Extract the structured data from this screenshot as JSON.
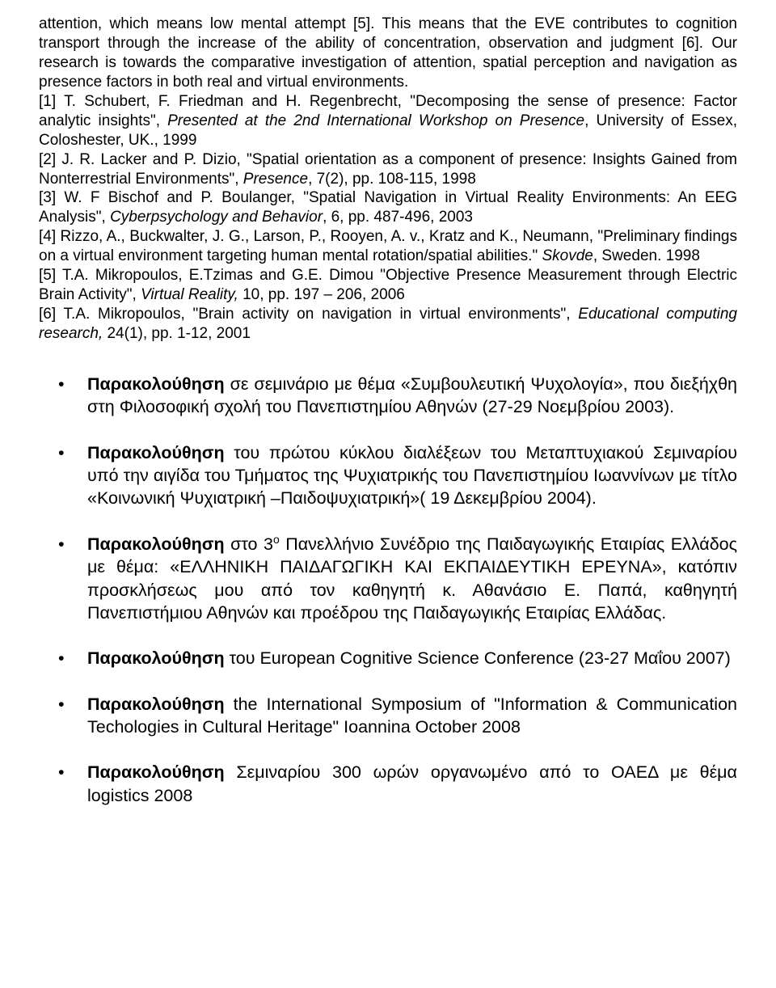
{
  "intro": {
    "p1_a": "attention, which means low mental attempt [5]. This means that the EVE contributes to cognition transport through the increase of the ability of concentration, observation and judgment [6]. Our research is towards the comparative investigation of attention, spatial perception and navigation as presence factors in both real and virtual environments."
  },
  "refs": {
    "r1_a": "[1] T. Schubert, F. Friedman and H. Regenbrecht, \"Decomposing the sense of presence: Factor analytic insights\", ",
    "r1_i": "Presented at the 2nd International Workshop on Presence",
    "r1_b": ", University of Essex, Coloshester, UK., 1999",
    "r2_a": "[2] J. R. Lacker and  P. Dizio, \"Spatial orientation as a component of presence: Insights Gained from Nonterrestrial Environments\", ",
    "r2_i": "Presence",
    "r2_b": ", 7(2), pp. 108-115, 1998",
    "r3_a": "[3] W. F Bischof and P. Boulanger, \"Spatial Navigation in Virtual Reality Environments: An EEG Analysis\", ",
    "r3_i": "Cyberpsychology and Behavior",
    "r3_b": ", 6, pp. 487-496, 2003",
    "r4_a": "[4] Rizzo, A., Buckwalter, J. G., Larson, P., Rooyen, A. v., Kratz and K., Neumann, \"Preliminary findings on a virtual environment targeting human mental rotation/spatial abilities.\" ",
    "r4_i": "Skovde",
    "r4_b": ", Sweden. 1998",
    "r5_a": "[5] T.A. Mikropoulos, E.Tzimas and G.E. Dimou \"Objective Presence Measurement through Electric Brain Activity\", ",
    "r5_i": "Virtual Reality,",
    "r5_b": " 10, pp. 197 – 206, 2006",
    "r6_a": "[6] T.A. Mikropoulos, \"Brain activity on navigation in virtual environments\", ",
    "r6_i": "Educational computing research,",
    "r6_b": " 24(1), pp. 1-12, 2001"
  },
  "bullets": {
    "b1_bold": "Παρακολούθηση",
    "b1_rest": " σε σεμινάριο με θέμα «Συμβουλευτική Ψυχολογία», που διεξήχθη στη Φιλοσοφική σχολή του Πανεπιστημίου Αθηνών (27-29 Νοεμβρίου 2003).",
    "b2_bold": "Παρακολούθηση",
    "b2_rest": " του πρώτου κύκλου διαλέξεων του Μεταπτυχιακού Σεμιναρίου υπό την αιγίδα του Τμήματος της Ψυχιατρικής του Πανεπιστημίου Ιωαννίνων με τίτλο «Κοινωνική Ψυχιατρική –Παιδοψυχιατρική»( 19 Δεκεμβρίου 2004).",
    "b3_bold": "Παρακολούθηση",
    "b3_mid1": " στο 3",
    "b3_sup": "ο",
    "b3_rest": "  Πανελλήνιο Συνέδριο της Παιδαγωγικής Εταιρίας Ελλάδος με θέμα: «ΕΛΛΗΝΙΚΗ ΠΑΙΔΑΓΩΓΙΚΗ ΚΑΙ ΕΚΠΑΙΔΕΥΤΙΚΗ ΕΡΕΥΝΑ», κατόπιν προσκλήσεως μου από τον καθηγητή κ. Αθανάσιο Ε. Παπά, καθηγητή Πανεπιστήμιου Αθηνών και προέδρου της Παιδαγωγικής Εταιρίας Ελλάδας.",
    "b4_bold": "Παρακολούθηση",
    "b4_rest": " του European Cognitive Science Conference (23-27 Μαΐου 2007)",
    "b5_bold": "Παρακολούθηση",
    "b5_rest": " the International Symposium of \"Ιnformation & Communication Techologies in Cultural Heritage\" Ioannina October 2008",
    "b6_bold": "Παρακολούθηση",
    "b6_rest": " Σεμιναρίου 300 ωρών οργανωμένο από το ΟΑΕΔ με θέμα logistics 2008"
  }
}
